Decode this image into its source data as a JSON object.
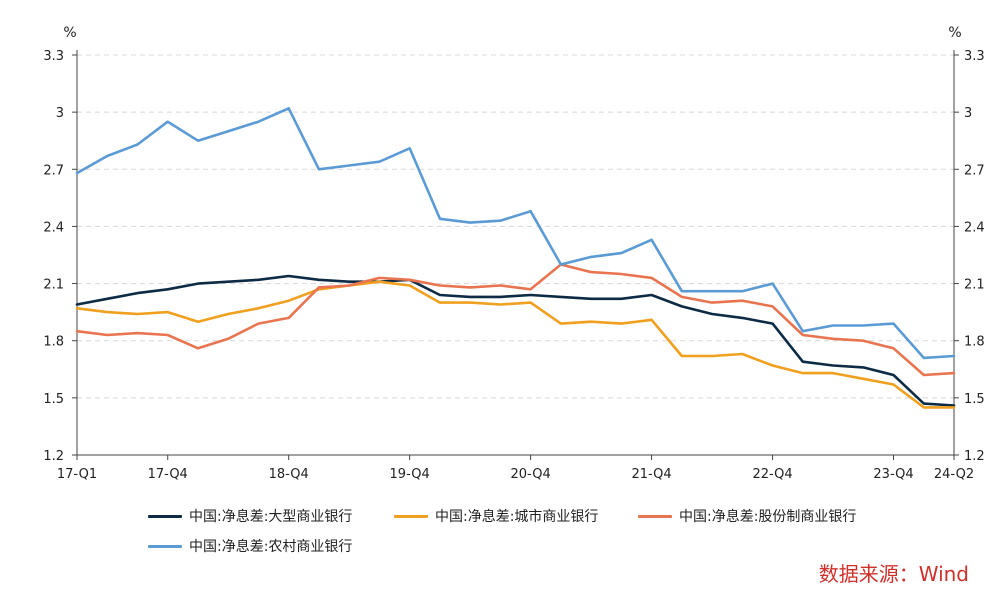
{
  "chart_data": {
    "type": "line",
    "unit_left": "%",
    "unit_right": "%",
    "ylim": [
      1.2,
      3.3
    ],
    "y_ticks": [
      "1.2",
      "1.5",
      "1.8",
      "2.1",
      "2.4",
      "2.7",
      "3",
      "3.3"
    ],
    "x": [
      "17-Q1",
      "17-Q2",
      "17-Q3",
      "17-Q4",
      "18-Q1",
      "18-Q2",
      "18-Q3",
      "18-Q4",
      "19-Q1",
      "19-Q2",
      "19-Q3",
      "19-Q4",
      "20-Q1",
      "20-Q2",
      "20-Q3",
      "20-Q4",
      "21-Q1",
      "21-Q2",
      "21-Q3",
      "21-Q4",
      "22-Q1",
      "22-Q2",
      "22-Q3",
      "22-Q4",
      "23-Q1",
      "23-Q2",
      "23-Q3",
      "23-Q4",
      "24-Q1",
      "24-Q2"
    ],
    "x_tick_labels": [
      "17-Q1",
      "17-Q4",
      "18-Q4",
      "19-Q4",
      "20-Q4",
      "21-Q4",
      "22-Q4",
      "23-Q4",
      "24-Q2"
    ],
    "grid": "horizontal dashed",
    "legend_position": "bottom",
    "series": [
      {
        "name": "中国:净息差:大型商业银行",
        "color": "#0d2b45",
        "values": [
          1.99,
          2.02,
          2.05,
          2.07,
          2.1,
          2.11,
          2.12,
          2.14,
          2.12,
          2.11,
          2.11,
          2.12,
          2.04,
          2.03,
          2.03,
          2.04,
          2.03,
          2.02,
          2.02,
          2.04,
          1.98,
          1.94,
          1.92,
          1.89,
          1.69,
          1.67,
          1.66,
          1.62,
          1.47,
          1.46
        ]
      },
      {
        "name": "中国:净息差:城市商业银行",
        "color": "#f0a01e",
        "values": [
          1.97,
          1.95,
          1.94,
          1.95,
          1.9,
          1.94,
          1.97,
          2.01,
          2.07,
          2.09,
          2.11,
          2.09,
          2.0,
          2.0,
          1.99,
          2.0,
          1.89,
          1.9,
          1.89,
          1.91,
          1.72,
          1.72,
          1.73,
          1.67,
          1.63,
          1.63,
          1.6,
          1.57,
          1.45,
          1.45
        ]
      },
      {
        "name": "中国:净息差:股份制商业银行",
        "color": "#e87550",
        "values": [
          1.85,
          1.83,
          1.84,
          1.83,
          1.76,
          1.81,
          1.89,
          1.92,
          2.08,
          2.09,
          2.13,
          2.12,
          2.09,
          2.08,
          2.09,
          2.07,
          2.2,
          2.16,
          2.15,
          2.13,
          2.03,
          2.0,
          2.01,
          1.98,
          1.83,
          1.81,
          1.8,
          1.76,
          1.62,
          1.63
        ]
      },
      {
        "name": "中国:净息差:农村商业银行",
        "color": "#5b9bd5",
        "values": [
          2.68,
          2.77,
          2.83,
          2.95,
          2.85,
          2.9,
          2.95,
          3.02,
          2.7,
          2.72,
          2.74,
          2.81,
          2.44,
          2.42,
          2.43,
          2.48,
          2.2,
          2.24,
          2.26,
          2.33,
          2.06,
          2.06,
          2.06,
          2.1,
          1.85,
          1.88,
          1.88,
          1.89,
          1.71,
          1.72
        ]
      }
    ]
  },
  "source_text": "数据来源：Wind"
}
